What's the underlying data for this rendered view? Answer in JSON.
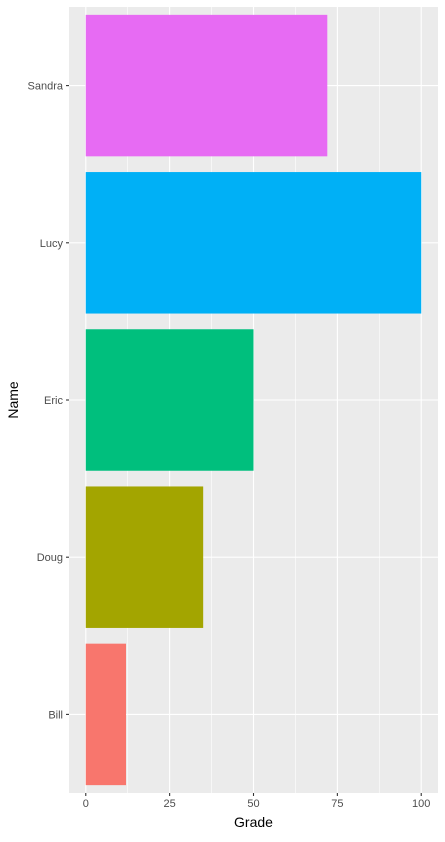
{
  "chart_data": {
    "type": "bar",
    "orientation": "horizontal",
    "categories": [
      "Bill",
      "Doug",
      "Eric",
      "Lucy",
      "Sandra"
    ],
    "values": [
      12,
      35,
      50,
      100,
      72
    ],
    "colors": [
      "#F8766D",
      "#A3A500",
      "#00BF7D",
      "#00B0F6",
      "#E76BF3"
    ],
    "xlabel": "Grade",
    "ylabel": "Name",
    "xlim": [
      -5,
      105
    ],
    "xticks": [
      0,
      25,
      50,
      75,
      100
    ],
    "xtick_labels": [
      "0",
      "25",
      "50",
      "75",
      "100"
    ],
    "grid": true,
    "panel_background": "#EBEBEB",
    "grid_color": "#FFFFFF"
  }
}
